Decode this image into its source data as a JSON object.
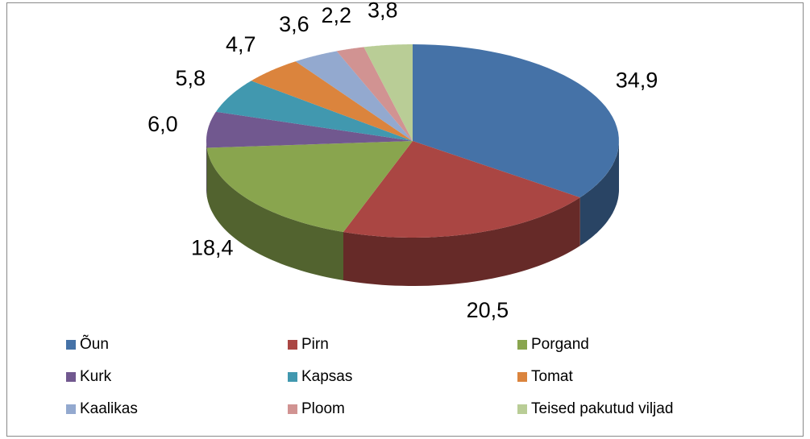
{
  "chart_data": {
    "type": "pie3d",
    "categories": [
      "Õun",
      "Pirn",
      "Porgand",
      "Kurk",
      "Kapsas",
      "Tomat",
      "Kaalikas",
      "Ploom",
      "Teised pakutud viljad"
    ],
    "values": [
      34.9,
      20.5,
      18.4,
      6.0,
      5.8,
      4.7,
      3.6,
      2.2,
      3.8
    ],
    "value_labels": [
      "34,9",
      "20,5",
      "18,4",
      "6,0",
      "5,8",
      "4,7",
      "3,6",
      "2,2",
      "3,8"
    ],
    "colors": [
      "#4572a7",
      "#aa4643",
      "#89a54e",
      "#71588f",
      "#4198af",
      "#db843d",
      "#93a9cf",
      "#d19392",
      "#b9cd96"
    ],
    "legend": "bottom"
  }
}
